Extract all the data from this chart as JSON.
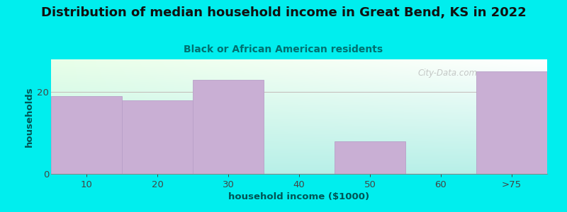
{
  "title": "Distribution of median household income in Great Bend, KS in 2022",
  "subtitle": "Black or African American residents",
  "xlabel": "household income ($1000)",
  "ylabel": "households",
  "categories": [
    "10",
    "20",
    "30",
    "40",
    "50",
    "60",
    ">75"
  ],
  "values": [
    19,
    18,
    23,
    0,
    8,
    0,
    25
  ],
  "bar_color": "#c9afd4",
  "bar_edge_color": "#b8a0c8",
  "background_color": "#00eeee",
  "title_color": "#111111",
  "subtitle_color": "#007070",
  "axis_label_color": "#005555",
  "tick_color": "#444444",
  "watermark": "City-Data.com",
  "ylim": [
    0,
    28
  ],
  "yticks": [
    0,
    20
  ],
  "title_fontsize": 13,
  "subtitle_fontsize": 10,
  "label_fontsize": 9.5
}
